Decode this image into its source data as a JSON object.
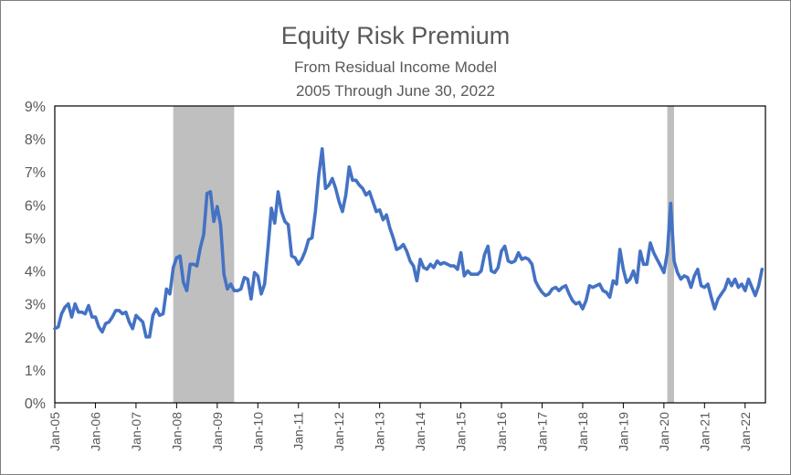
{
  "chart_data": {
    "type": "line",
    "title": "Equity Risk Premium",
    "subtitle_lines": [
      "From Residual Income Model",
      "2005 Through June 30, 2022"
    ],
    "xlabel": "",
    "ylabel": "",
    "ylim": [
      0,
      9
    ],
    "y_ticks": [
      "0%",
      "1%",
      "2%",
      "3%",
      "4%",
      "5%",
      "6%",
      "7%",
      "8%",
      "9%"
    ],
    "x_ticks": [
      "Jan-05",
      "Jan-06",
      "Jan-07",
      "Jan-08",
      "Jan-09",
      "Jan-10",
      "Jan-11",
      "Jan-12",
      "Jan-13",
      "Jan-14",
      "Jan-15",
      "Jan-16",
      "Jan-17",
      "Jan-18",
      "Jan-19",
      "Jan-20",
      "Jan-21",
      "Jan-22"
    ],
    "grid": false,
    "line_color": "#4472c4",
    "shade_color": "#bfbfbf",
    "shaded_periods": [
      {
        "start": "2007-12",
        "end": "2009-06"
      },
      {
        "start": "2020-02",
        "end": "2020-04"
      }
    ],
    "series": [
      {
        "points": [
          [
            "2005-01",
            2.25
          ],
          [
            "2005-02",
            2.3
          ],
          [
            "2005-03",
            2.7
          ],
          [
            "2005-04",
            2.9
          ],
          [
            "2005-05",
            3.0
          ],
          [
            "2005-06",
            2.6
          ],
          [
            "2005-07",
            3.0
          ],
          [
            "2005-08",
            2.75
          ],
          [
            "2005-09",
            2.75
          ],
          [
            "2005-10",
            2.7
          ],
          [
            "2005-11",
            2.95
          ],
          [
            "2005-12",
            2.6
          ],
          [
            "2006-01",
            2.6
          ],
          [
            "2006-02",
            2.3
          ],
          [
            "2006-03",
            2.15
          ],
          [
            "2006-04",
            2.4
          ],
          [
            "2006-05",
            2.45
          ],
          [
            "2006-06",
            2.6
          ],
          [
            "2006-07",
            2.8
          ],
          [
            "2006-08",
            2.8
          ],
          [
            "2006-09",
            2.7
          ],
          [
            "2006-10",
            2.75
          ],
          [
            "2006-11",
            2.45
          ],
          [
            "2006-12",
            2.25
          ],
          [
            "2007-01",
            2.65
          ],
          [
            "2007-02",
            2.55
          ],
          [
            "2007-03",
            2.45
          ],
          [
            "2007-04",
            2.0
          ],
          [
            "2007-05",
            2.0
          ],
          [
            "2007-06",
            2.65
          ],
          [
            "2007-07",
            2.85
          ],
          [
            "2007-08",
            2.65
          ],
          [
            "2007-09",
            2.7
          ],
          [
            "2007-10",
            3.45
          ],
          [
            "2007-11",
            3.3
          ],
          [
            "2007-12",
            4.1
          ],
          [
            "2008-01",
            4.4
          ],
          [
            "2008-02",
            4.45
          ],
          [
            "2008-03",
            3.65
          ],
          [
            "2008-04",
            3.4
          ],
          [
            "2008-05",
            4.2
          ],
          [
            "2008-06",
            4.2
          ],
          [
            "2008-07",
            4.15
          ],
          [
            "2008-08",
            4.7
          ],
          [
            "2008-09",
            5.1
          ],
          [
            "2008-10",
            6.35
          ],
          [
            "2008-11",
            6.4
          ],
          [
            "2008-12",
            5.5
          ],
          [
            "2009-01",
            5.95
          ],
          [
            "2009-02",
            5.4
          ],
          [
            "2009-03",
            3.9
          ],
          [
            "2009-04",
            3.45
          ],
          [
            "2009-05",
            3.6
          ],
          [
            "2009-06",
            3.4
          ],
          [
            "2009-07",
            3.4
          ],
          [
            "2009-08",
            3.45
          ],
          [
            "2009-09",
            3.8
          ],
          [
            "2009-10",
            3.75
          ],
          [
            "2009-11",
            3.15
          ],
          [
            "2009-12",
            3.95
          ],
          [
            "2010-01",
            3.85
          ],
          [
            "2010-02",
            3.3
          ],
          [
            "2010-03",
            3.6
          ],
          [
            "2010-04",
            4.7
          ],
          [
            "2010-05",
            5.9
          ],
          [
            "2010-06",
            5.45
          ],
          [
            "2010-07",
            6.4
          ],
          [
            "2010-08",
            5.8
          ],
          [
            "2010-09",
            5.5
          ],
          [
            "2010-10",
            5.4
          ],
          [
            "2010-11",
            4.45
          ],
          [
            "2010-12",
            4.4
          ],
          [
            "2011-01",
            4.2
          ],
          [
            "2011-02",
            4.35
          ],
          [
            "2011-03",
            4.6
          ],
          [
            "2011-04",
            4.95
          ],
          [
            "2011-05",
            5.0
          ],
          [
            "2011-06",
            5.8
          ],
          [
            "2011-07",
            6.9
          ],
          [
            "2011-08",
            7.7
          ],
          [
            "2011-09",
            6.5
          ],
          [
            "2011-10",
            6.6
          ],
          [
            "2011-11",
            6.8
          ],
          [
            "2011-12",
            6.5
          ],
          [
            "2012-01",
            6.1
          ],
          [
            "2012-02",
            5.8
          ],
          [
            "2012-03",
            6.3
          ],
          [
            "2012-04",
            7.15
          ],
          [
            "2012-05",
            6.75
          ],
          [
            "2012-06",
            6.75
          ],
          [
            "2012-07",
            6.6
          ],
          [
            "2012-08",
            6.5
          ],
          [
            "2012-09",
            6.3
          ],
          [
            "2012-10",
            6.4
          ],
          [
            "2012-11",
            6.1
          ],
          [
            "2012-12",
            5.8
          ],
          [
            "2013-01",
            5.85
          ],
          [
            "2013-02",
            5.55
          ],
          [
            "2013-03",
            5.7
          ],
          [
            "2013-04",
            5.3
          ],
          [
            "2013-05",
            5.0
          ],
          [
            "2013-06",
            4.65
          ],
          [
            "2013-07",
            4.7
          ],
          [
            "2013-08",
            4.8
          ],
          [
            "2013-09",
            4.6
          ],
          [
            "2013-10",
            4.3
          ],
          [
            "2013-11",
            4.15
          ],
          [
            "2013-12",
            3.7
          ],
          [
            "2014-01",
            4.35
          ],
          [
            "2014-02",
            4.1
          ],
          [
            "2014-03",
            4.05
          ],
          [
            "2014-04",
            4.2
          ],
          [
            "2014-05",
            4.1
          ],
          [
            "2014-06",
            4.3
          ],
          [
            "2014-07",
            4.2
          ],
          [
            "2014-08",
            4.25
          ],
          [
            "2014-09",
            4.2
          ],
          [
            "2014-10",
            4.15
          ],
          [
            "2014-11",
            4.15
          ],
          [
            "2014-12",
            4.05
          ],
          [
            "2015-01",
            4.55
          ],
          [
            "2015-02",
            3.85
          ],
          [
            "2015-03",
            4.0
          ],
          [
            "2015-04",
            3.9
          ],
          [
            "2015-05",
            3.9
          ],
          [
            "2015-06",
            3.9
          ],
          [
            "2015-07",
            4.0
          ],
          [
            "2015-08",
            4.5
          ],
          [
            "2015-09",
            4.75
          ],
          [
            "2015-10",
            4.0
          ],
          [
            "2015-11",
            3.95
          ],
          [
            "2015-12",
            4.1
          ],
          [
            "2016-01",
            4.6
          ],
          [
            "2016-02",
            4.75
          ],
          [
            "2016-03",
            4.3
          ],
          [
            "2016-04",
            4.25
          ],
          [
            "2016-05",
            4.3
          ],
          [
            "2016-06",
            4.55
          ],
          [
            "2016-07",
            4.35
          ],
          [
            "2016-08",
            4.4
          ],
          [
            "2016-09",
            4.35
          ],
          [
            "2016-10",
            4.2
          ],
          [
            "2016-11",
            3.7
          ],
          [
            "2016-12",
            3.5
          ],
          [
            "2017-01",
            3.35
          ],
          [
            "2017-02",
            3.25
          ],
          [
            "2017-03",
            3.3
          ],
          [
            "2017-04",
            3.45
          ],
          [
            "2017-05",
            3.5
          ],
          [
            "2017-06",
            3.4
          ],
          [
            "2017-07",
            3.5
          ],
          [
            "2017-08",
            3.55
          ],
          [
            "2017-09",
            3.3
          ],
          [
            "2017-10",
            3.1
          ],
          [
            "2017-11",
            3.0
          ],
          [
            "2017-12",
            3.05
          ],
          [
            "2018-01",
            2.85
          ],
          [
            "2018-02",
            3.1
          ],
          [
            "2018-03",
            3.55
          ],
          [
            "2018-04",
            3.5
          ],
          [
            "2018-05",
            3.55
          ],
          [
            "2018-06",
            3.6
          ],
          [
            "2018-07",
            3.4
          ],
          [
            "2018-08",
            3.35
          ],
          [
            "2018-09",
            3.2
          ],
          [
            "2018-10",
            3.7
          ],
          [
            "2018-11",
            3.6
          ],
          [
            "2018-12",
            4.65
          ],
          [
            "2019-01",
            4.05
          ],
          [
            "2019-02",
            3.65
          ],
          [
            "2019-03",
            3.75
          ],
          [
            "2019-04",
            4.0
          ],
          [
            "2019-05",
            3.65
          ],
          [
            "2019-06",
            4.6
          ],
          [
            "2019-07",
            4.2
          ],
          [
            "2019-08",
            4.2
          ],
          [
            "2019-09",
            4.85
          ],
          [
            "2019-10",
            4.55
          ],
          [
            "2019-11",
            4.35
          ],
          [
            "2019-12",
            4.15
          ],
          [
            "2020-01",
            3.95
          ],
          [
            "2020-02",
            4.55
          ],
          [
            "2020-03",
            6.05
          ],
          [
            "2020-04",
            4.3
          ],
          [
            "2020-05",
            3.95
          ],
          [
            "2020-06",
            3.75
          ],
          [
            "2020-07",
            3.85
          ],
          [
            "2020-08",
            3.8
          ],
          [
            "2020-09",
            3.5
          ],
          [
            "2020-10",
            3.85
          ],
          [
            "2020-11",
            4.05
          ],
          [
            "2020-12",
            3.55
          ],
          [
            "2021-01",
            3.5
          ],
          [
            "2021-02",
            3.6
          ],
          [
            "2021-03",
            3.2
          ],
          [
            "2021-04",
            2.85
          ],
          [
            "2021-05",
            3.15
          ],
          [
            "2021-06",
            3.3
          ],
          [
            "2021-07",
            3.45
          ],
          [
            "2021-08",
            3.75
          ],
          [
            "2021-09",
            3.55
          ],
          [
            "2021-10",
            3.75
          ],
          [
            "2021-11",
            3.5
          ],
          [
            "2021-12",
            3.6
          ],
          [
            "2022-01",
            3.4
          ],
          [
            "2022-02",
            3.75
          ],
          [
            "2022-03",
            3.5
          ],
          [
            "2022-04",
            3.25
          ],
          [
            "2022-05",
            3.55
          ],
          [
            "2022-06",
            4.05
          ]
        ]
      }
    ]
  }
}
